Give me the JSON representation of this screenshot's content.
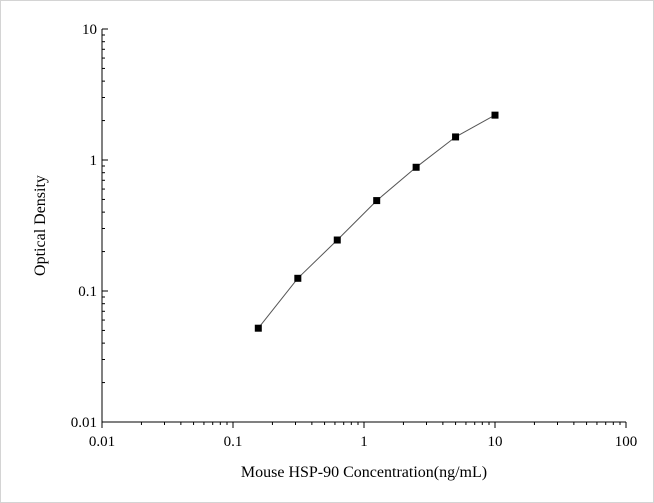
{
  "chart_data": {
    "type": "scatter",
    "title": "",
    "xlabel": "Mouse HSP-90 Concentration(ng/mL)",
    "ylabel": "Optical Density",
    "x_scale": "log",
    "y_scale": "log",
    "xlim": [
      0.01,
      100
    ],
    "ylim": [
      0.01,
      10
    ],
    "x_ticks": [
      0.01,
      0.1,
      1,
      10,
      100
    ],
    "x_tick_labels": [
      "0.01",
      "0.1",
      "1",
      "10",
      "100"
    ],
    "y_ticks": [
      0.01,
      0.1,
      1,
      10
    ],
    "y_tick_labels": [
      "0.01",
      "0.1",
      "1",
      "10"
    ],
    "grid": false,
    "legend": "none",
    "series": [
      {
        "points_connected": true,
        "marker": "square",
        "color": "#000000",
        "line_color": "#555555",
        "x": [
          0.156,
          0.3125,
          0.625,
          1.25,
          2.5,
          5,
          10
        ],
        "y": [
          0.052,
          0.125,
          0.245,
          0.49,
          0.88,
          1.5,
          2.2
        ]
      }
    ]
  }
}
